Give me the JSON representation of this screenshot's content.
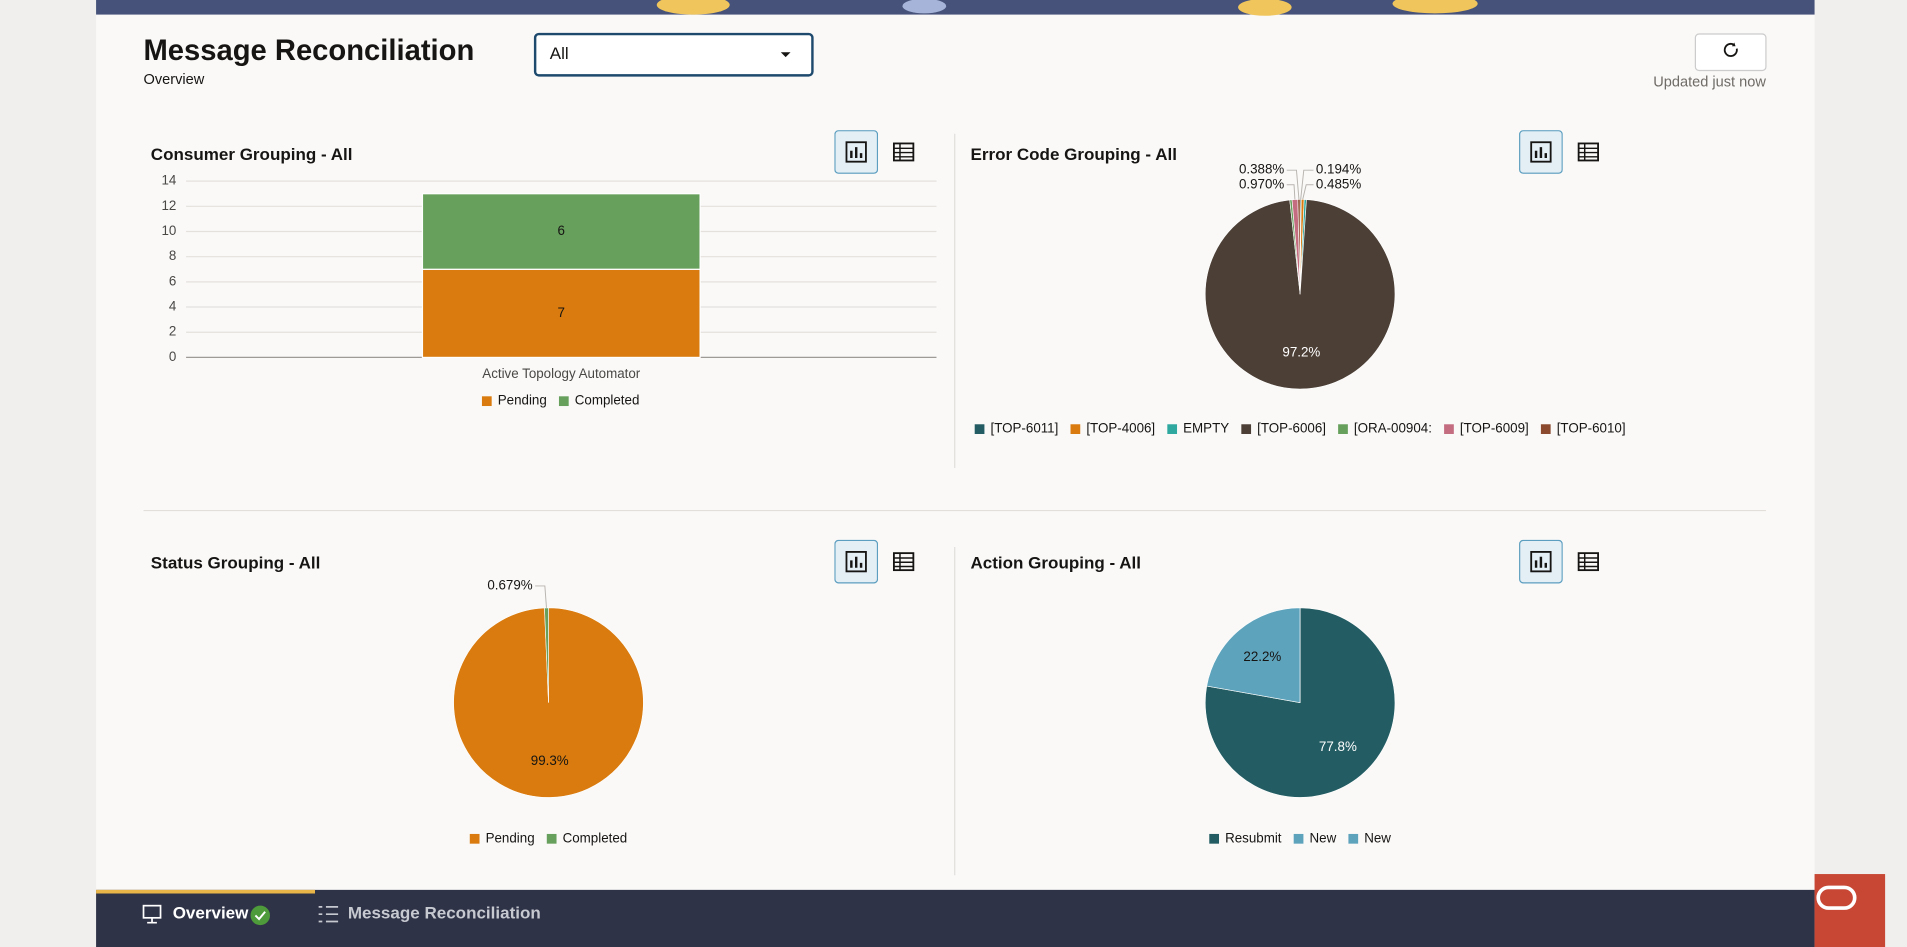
{
  "header": {
    "title": "Message Reconciliation",
    "subtitle": "Overview",
    "filter": "All",
    "status": "Updated just now"
  },
  "tabs": [
    "Overview",
    "Message Reconciliation"
  ],
  "chart_data": [
    {
      "type": "bar",
      "stacked": true,
      "title": "Consumer Grouping - All",
      "categories": [
        "Active Topology Automator"
      ],
      "series": [
        {
          "name": "Pending",
          "color": "#d97b0e",
          "values": [
            7
          ]
        },
        {
          "name": "Completed",
          "color": "#67a05c",
          "values": [
            6
          ]
        }
      ],
      "ylim": [
        0,
        14
      ],
      "yticks": [
        0,
        2,
        4,
        6,
        8,
        10,
        12,
        14
      ],
      "grid": true,
      "legend": "bottom"
    },
    {
      "type": "pie",
      "title": "Error Code Grouping - All",
      "categories": [
        "[TOP-6011]",
        "[TOP-4006]",
        "EMPTY",
        "[TOP-6006]",
        "[ORA-00904:",
        "[TOP-6009]",
        "[TOP-6010]"
      ],
      "values": [
        0.194,
        0.485,
        0.388,
        97.2,
        0.388,
        0.97,
        0.388
      ],
      "value_labels": [
        "0.194%",
        "0.485%",
        null,
        "97.2%",
        null,
        "0.970%",
        "0.388%"
      ],
      "colors": [
        "#235d63",
        "#d97b0e",
        "#2fa9a0",
        "#4c3f36",
        "#67a05c",
        "#c46d80",
        "#8b4a2e"
      ],
      "legend": "bottom"
    },
    {
      "type": "pie",
      "title": "Status Grouping - All",
      "categories": [
        "Pending",
        "Completed"
      ],
      "values": [
        99.3,
        0.679
      ],
      "value_labels": [
        "99.3%",
        "0.679%"
      ],
      "colors": [
        "#d97b0e",
        "#67a05c"
      ],
      "legend": "bottom"
    },
    {
      "type": "pie",
      "title": "Action Grouping - All",
      "categories": [
        "Resubmit",
        "New",
        "New"
      ],
      "values": [
        77.8,
        22.2,
        0
      ],
      "value_labels": [
        "77.8%",
        "22.2%",
        null
      ],
      "colors": [
        "#235d63",
        "#5ea3bc",
        "#5ea3bc"
      ],
      "legend": "bottom"
    }
  ]
}
